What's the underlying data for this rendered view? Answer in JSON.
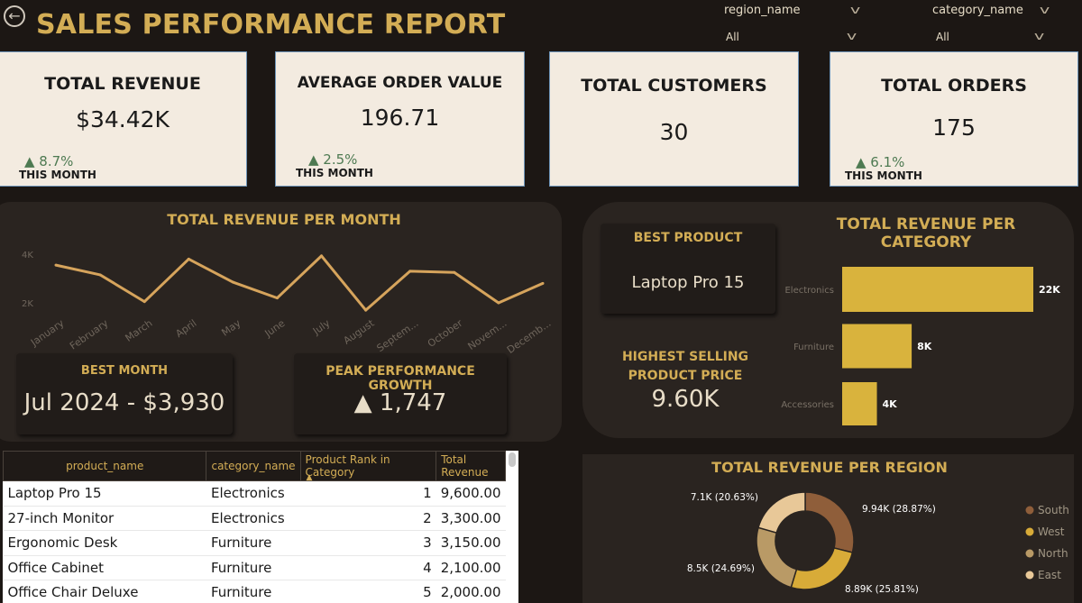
{
  "header": {
    "title": "SALES PERFORMANCE REPORT",
    "back_icon": "back-arrow-icon"
  },
  "slicers": [
    {
      "label": "region_name",
      "value": "All"
    },
    {
      "label": "category_name",
      "value": "All"
    }
  ],
  "cards": {
    "revenue": {
      "title": "TOTAL REVENUE",
      "value": "$34.42K",
      "change": "▲ 8.7%",
      "period": "THIS MONTH"
    },
    "aov": {
      "title": "AVERAGE ORDER VALUE",
      "value": "196.71",
      "change": "▲ 2.5%",
      "period": "THIS MONTH"
    },
    "customers": {
      "title": "TOTAL CUSTOMERS",
      "value": "30"
    },
    "orders": {
      "title": "TOTAL ORDERS",
      "value": "175",
      "change": "▲ 6.1%",
      "period": "THIS MONTH"
    }
  },
  "monthly": {
    "title": "TOTAL REVENUE PER MONTH",
    "best_month_label": "BEST MONTH",
    "best_month_value": "Jul 2024 - $3,930",
    "growth_label": "PEAK PERFORMANCE GROWTH",
    "growth_value": "▲ 1,747"
  },
  "category_panel": {
    "best_product_label": "BEST PRODUCT",
    "best_product_value": "Laptop Pro 15",
    "highest_price_label": "HIGHEST SELLING PRODUCT PRICE",
    "highest_price_value": "9.60K",
    "title": "TOTAL REVENUE PER CATEGORY"
  },
  "region_panel": {
    "title": "TOTAL REVENUE PER REGION"
  },
  "table": {
    "columns": [
      "product_name",
      "category_name",
      "Product Rank in Category",
      "Total Revenue"
    ],
    "rows": [
      [
        "Laptop Pro 15",
        "Electronics",
        "1",
        "9,600.00"
      ],
      [
        "27-inch Monitor",
        "Electronics",
        "2",
        "3,300.00"
      ],
      [
        "Ergonomic Desk",
        "Furniture",
        "3",
        "3,150.00"
      ],
      [
        "Office Cabinet",
        "Furniture",
        "4",
        "2,100.00"
      ],
      [
        "Office Chair Deluxe",
        "Furniture",
        "5",
        "2,000.00"
      ]
    ]
  },
  "chart_data": [
    {
      "type": "line",
      "title": "TOTAL REVENUE PER MONTH",
      "categories": [
        "January",
        "February",
        "March",
        "April",
        "May",
        "June",
        "July",
        "August",
        "Septem...",
        "October",
        "Novem...",
        "Decemb..."
      ],
      "values": [
        3550,
        3150,
        2050,
        3800,
        2850,
        2200,
        3930,
        1700,
        3300,
        3250,
        2000,
        2800
      ],
      "ylim": [
        0,
        5000
      ],
      "yticks": [
        "2K",
        "4K"
      ],
      "color": "#d6a45c"
    },
    {
      "type": "bar",
      "orientation": "horizontal",
      "title": "TOTAL REVENUE PER CATEGORY",
      "categories": [
        "Electronics",
        "Furniture",
        "Accessories"
      ],
      "values": [
        22,
        8,
        4
      ],
      "labels": [
        "22K",
        "8K",
        "4K"
      ],
      "color": "#d9b33d"
    },
    {
      "type": "pie",
      "donut": true,
      "title": "TOTAL REVENUE PER REGION",
      "categories": [
        "South",
        "West",
        "North",
        "East"
      ],
      "values": [
        9.94,
        8.89,
        8.5,
        7.1
      ],
      "labels": [
        "9.94K (28.87%)",
        "8.89K (25.81%)",
        "8.5K (24.69%)",
        "7.1K (20.63%)"
      ],
      "colors": [
        "#8f5e3a",
        "#d8ab38",
        "#b99a66",
        "#e8c898"
      ]
    }
  ]
}
